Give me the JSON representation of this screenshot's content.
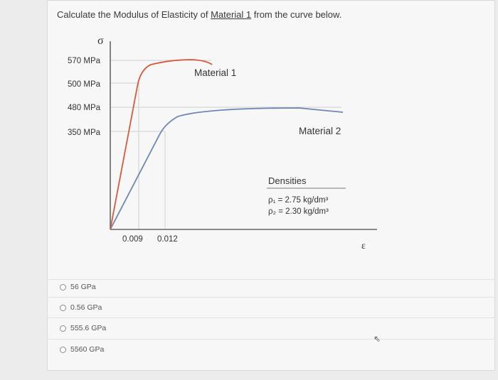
{
  "question": {
    "prefix": "Calculate the Modulus of Elasticity of ",
    "material_link": "Material 1",
    "suffix": " from the curve below."
  },
  "chart_data": {
    "type": "line",
    "ylabel": "σ",
    "xlabel": "ε",
    "y_ticks": [
      "570 MPa",
      "500 MPa",
      "480 MPa",
      "350 MPa"
    ],
    "x_ticks": [
      "0.009",
      "0.012"
    ],
    "series": [
      {
        "name": "Material 1",
        "color": "#d45a3c",
        "points": [
          [
            0,
            0
          ],
          [
            0.009,
            500
          ],
          [
            0.012,
            570
          ],
          [
            0.03,
            570
          ]
        ]
      },
      {
        "name": "Material 2",
        "color": "#6f86b4",
        "points": [
          [
            0,
            0
          ],
          [
            0.012,
            350
          ],
          [
            0.02,
            480
          ],
          [
            0.07,
            470
          ]
        ]
      }
    ],
    "densities": {
      "title": "Densities",
      "rho1": "ρ₁ = 2.75 kg/dm³",
      "rho2": "ρ₂ = 2.30 kg/dm³"
    }
  },
  "options": [
    {
      "label": "56 GPa"
    },
    {
      "label": "0.56 GPa"
    },
    {
      "label": "555.6 GPa"
    },
    {
      "label": "5560 GPa"
    }
  ],
  "icons": {
    "cursor": "cursor-icon"
  }
}
